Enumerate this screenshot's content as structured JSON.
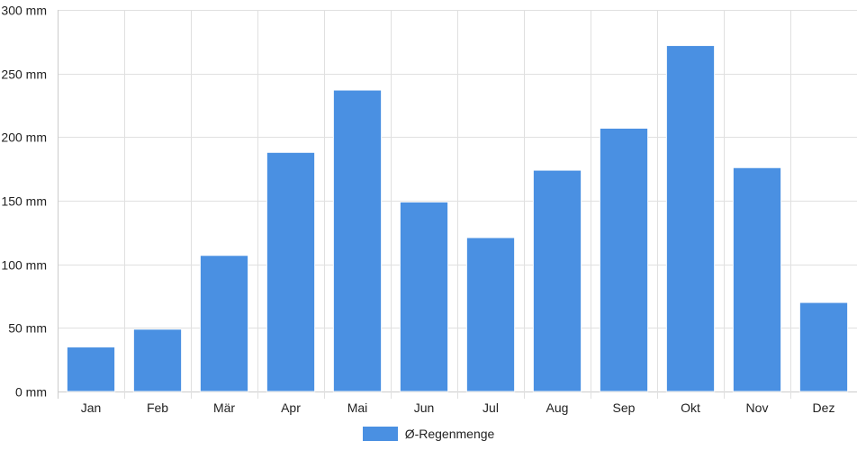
{
  "chart_data": {
    "type": "bar",
    "categories": [
      "Jan",
      "Feb",
      "Mär",
      "Apr",
      "Mai",
      "Jun",
      "Jul",
      "Aug",
      "Sep",
      "Okt",
      "Nov",
      "Dez"
    ],
    "series": [
      {
        "name": "Ø-Regenmenge",
        "values": [
          35,
          49,
          107,
          188,
          237,
          149,
          121,
          174,
          207,
          272,
          176,
          70
        ]
      }
    ],
    "ylim": [
      0,
      300
    ],
    "yticks": [
      0,
      50,
      100,
      150,
      200,
      250,
      300
    ],
    "ytick_labels": [
      "0 mm",
      "50 mm",
      "100 mm",
      "150 mm",
      "200 mm",
      "250 mm",
      "300 mm"
    ],
    "grid": true,
    "legend_position": "bottom",
    "colors": {
      "bar": "#4a90e2",
      "grid": "#e0e0e0",
      "axis": "#cccccc"
    }
  }
}
